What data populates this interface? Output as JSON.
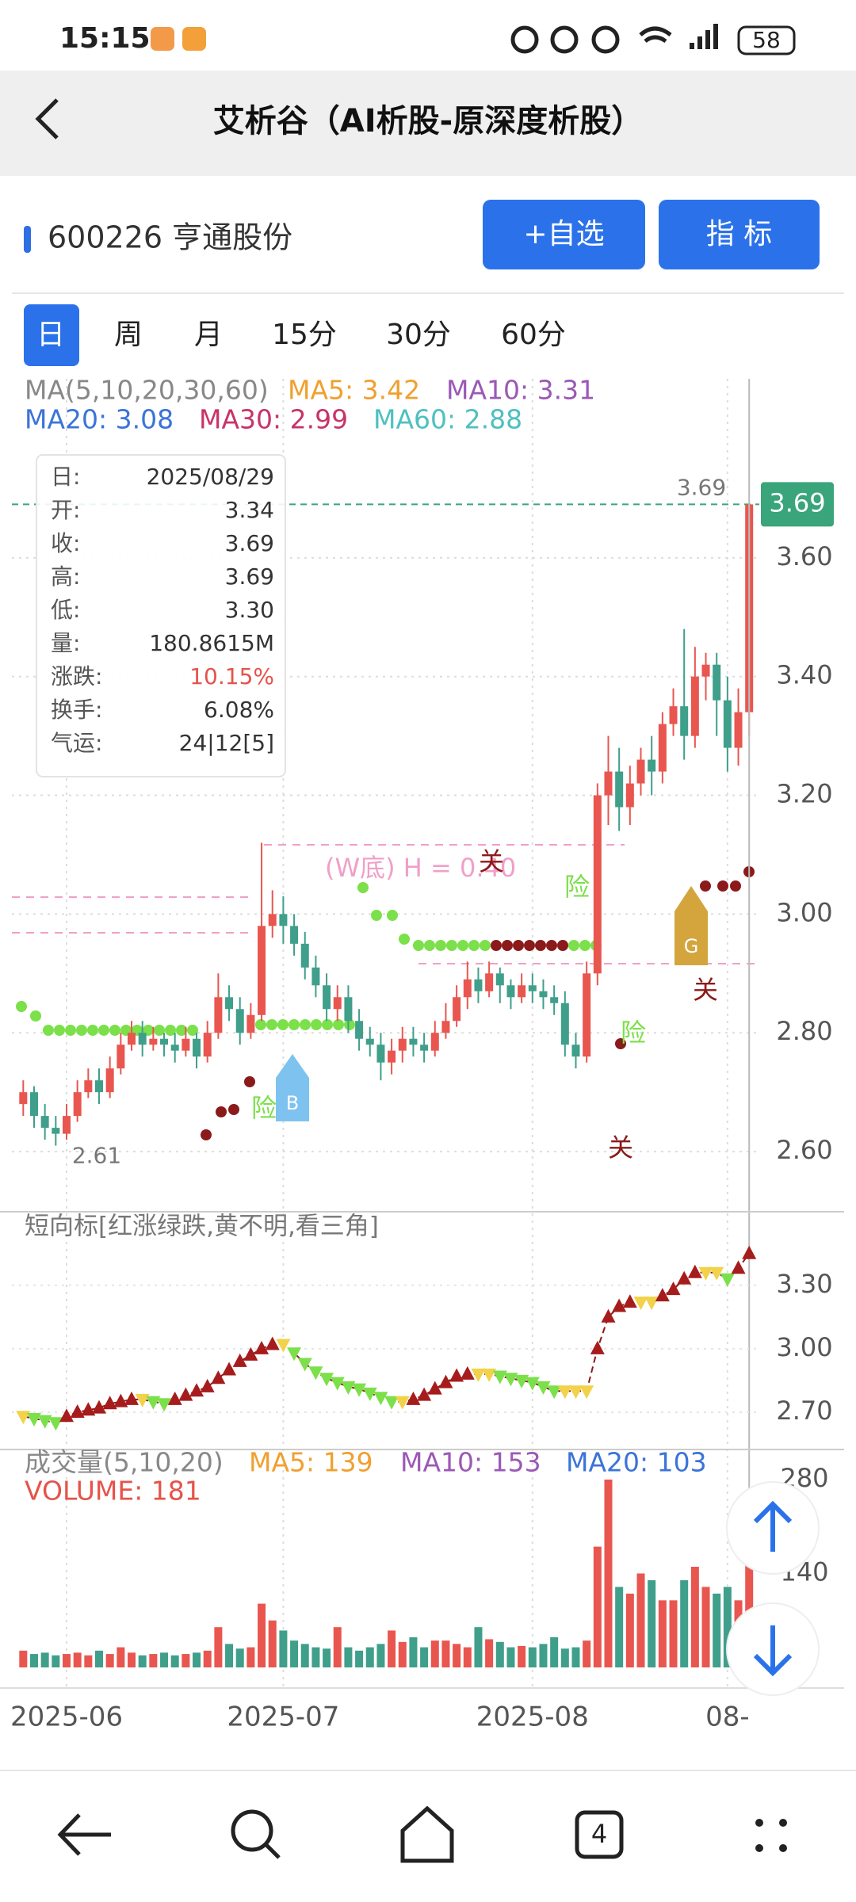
{
  "status_bar": {
    "time": "15:15",
    "battery": "58"
  },
  "header": {
    "title": "艾析谷（AI析股-原深度析股）"
  },
  "stock": {
    "name": "600226 亨通股份",
    "buttons": [
      "+自选",
      "指 标"
    ]
  },
  "tabs": [
    "日",
    "周",
    "月",
    "15分",
    "30分",
    "60分"
  ],
  "ma_legend": [
    "MA(5,10,20,30,60)",
    "MA5: 3.42",
    "MA10: 3.31",
    "MA20: 3.08",
    "MA30: 2.99",
    "MA60: 2.88"
  ],
  "info_box": {
    "rows": [
      [
        "日:",
        "2025/08/29"
      ],
      [
        "开:",
        "3.34"
      ],
      [
        "收:",
        "3.69"
      ],
      [
        "高:",
        "3.69"
      ],
      [
        "低:",
        "3.30"
      ],
      [
        "量:",
        "180.8615M"
      ],
      [
        "涨跌:",
        "10.15%"
      ],
      [
        "换手:",
        "6.08%"
      ],
      [
        "气运:",
        "24|12[5]"
      ]
    ]
  },
  "chart_data": [
    {
      "type": "candlestick",
      "categories": [
        null,
        null,
        null,
        null,
        "2025-06",
        null,
        null,
        null,
        null,
        null,
        null,
        null,
        null,
        null,
        null,
        null,
        null,
        null,
        null,
        null,
        null,
        null,
        null,
        null,
        "2025-07",
        null,
        null,
        null,
        null,
        null,
        null,
        null,
        null,
        null,
        null,
        null,
        null,
        null,
        null,
        null,
        null,
        null,
        null,
        null,
        null,
        null,
        null,
        "2025-08",
        null,
        null,
        null,
        null,
        null,
        null,
        null,
        null,
        null,
        null,
        null,
        null,
        null,
        null,
        null,
        null,
        null,
        "08-",
        null,
        null
      ],
      "open": [
        2.68,
        2.7,
        2.66,
        2.64,
        2.63,
        2.66,
        2.7,
        2.72,
        2.7,
        2.74,
        2.78,
        2.8,
        2.78,
        2.79,
        2.78,
        2.77,
        2.79,
        2.76,
        2.8,
        2.86,
        2.84,
        2.8,
        2.83,
        2.98,
        3.0,
        2.98,
        2.95,
        2.91,
        2.88,
        2.84,
        2.86,
        2.82,
        2.79,
        2.78,
        2.75,
        2.77,
        2.79,
        2.78,
        2.77,
        2.8,
        2.82,
        2.86,
        2.89,
        2.87,
        2.9,
        2.88,
        2.86,
        2.88,
        2.87,
        2.86,
        2.85,
        2.78,
        2.76,
        2.9,
        3.2,
        3.24,
        3.18,
        3.22,
        3.26,
        3.24,
        3.32,
        3.35,
        3.3,
        3.4,
        3.42,
        3.36,
        3.28,
        3.34
      ],
      "high": [
        2.72,
        2.71,
        2.68,
        2.66,
        2.68,
        2.72,
        2.74,
        2.74,
        2.76,
        2.8,
        2.82,
        2.82,
        2.81,
        2.8,
        2.8,
        2.81,
        2.8,
        2.82,
        2.9,
        2.88,
        2.86,
        2.85,
        3.12,
        3.04,
        3.03,
        3.0,
        2.97,
        2.93,
        2.9,
        2.88,
        2.88,
        2.84,
        2.81,
        2.8,
        2.79,
        2.81,
        2.81,
        2.8,
        2.82,
        2.85,
        2.88,
        2.92,
        2.91,
        2.92,
        2.91,
        2.89,
        2.9,
        2.9,
        2.89,
        2.88,
        2.87,
        2.8,
        2.92,
        3.22,
        3.3,
        3.28,
        3.25,
        3.28,
        3.3,
        3.34,
        3.38,
        3.48,
        3.45,
        3.44,
        3.44,
        3.4,
        3.38,
        3.69
      ],
      "low": [
        2.66,
        2.64,
        2.62,
        2.61,
        2.62,
        2.65,
        2.69,
        2.68,
        2.69,
        2.73,
        2.77,
        2.76,
        2.77,
        2.76,
        2.75,
        2.76,
        2.74,
        2.75,
        2.79,
        2.82,
        2.78,
        2.79,
        2.82,
        2.96,
        2.95,
        2.93,
        2.89,
        2.86,
        2.82,
        2.82,
        2.8,
        2.77,
        2.76,
        2.72,
        2.73,
        2.75,
        2.76,
        2.75,
        2.76,
        2.79,
        2.81,
        2.84,
        2.85,
        2.86,
        2.85,
        2.84,
        2.85,
        2.85,
        2.84,
        2.83,
        2.76,
        2.74,
        2.75,
        2.88,
        3.15,
        3.14,
        3.15,
        3.2,
        3.2,
        3.22,
        3.3,
        3.26,
        3.28,
        3.36,
        3.3,
        3.24,
        3.25,
        3.3
      ],
      "close": [
        2.7,
        2.66,
        2.64,
        2.63,
        2.66,
        2.7,
        2.72,
        2.7,
        2.74,
        2.78,
        2.8,
        2.78,
        2.79,
        2.78,
        2.77,
        2.79,
        2.76,
        2.8,
        2.86,
        2.84,
        2.8,
        2.83,
        2.98,
        3.0,
        2.98,
        2.95,
        2.91,
        2.88,
        2.84,
        2.86,
        2.82,
        2.79,
        2.78,
        2.75,
        2.77,
        2.79,
        2.78,
        2.77,
        2.8,
        2.82,
        2.86,
        2.89,
        2.87,
        2.9,
        2.88,
        2.86,
        2.88,
        2.87,
        2.86,
        2.85,
        2.78,
        2.76,
        2.9,
        3.2,
        3.24,
        3.18,
        3.22,
        3.26,
        3.24,
        3.32,
        3.35,
        3.3,
        3.4,
        3.42,
        3.36,
        3.28,
        3.34,
        3.69
      ],
      "colors": {
        "up": "#e8564f",
        "down": "#3f9f8a"
      },
      "ylim": [
        2.5,
        3.8
      ],
      "yticks": [
        {
          "value": 3.6,
          "label": "3.60"
        },
        {
          "value": 3.4,
          "label": "3.40"
        },
        {
          "value": 3.2,
          "label": "3.20"
        },
        {
          "value": 3,
          "label": "3.00"
        },
        {
          "value": 2.8,
          "label": "2.80"
        },
        {
          "value": 2.6,
          "label": "2.60"
        }
      ],
      "grid": true,
      "last_label": {
        "value": 3.69,
        "label": "3.69"
      },
      "max_label": {
        "value": 3.69,
        "label": "3.69"
      },
      "min_label": {
        "value": 2.61,
        "label": "2.61"
      },
      "annotations": [
        "(W底) H = 0.40",
        "关",
        "关",
        "关",
        "险",
        "险",
        "险",
        "B",
        "G"
      ]
    },
    {
      "type": "line",
      "title": "短向标[红涨绿跌,黄不明,看三角]",
      "values": [
        2.68,
        2.67,
        2.66,
        2.65,
        2.68,
        2.7,
        2.71,
        2.72,
        2.74,
        2.75,
        2.76,
        2.76,
        2.75,
        2.74,
        2.76,
        2.78,
        2.8,
        2.82,
        2.86,
        2.9,
        2.94,
        2.97,
        3.0,
        3.02,
        3.02,
        2.98,
        2.93,
        2.89,
        2.86,
        2.84,
        2.82,
        2.81,
        2.79,
        2.77,
        2.75,
        2.75,
        2.76,
        2.78,
        2.81,
        2.84,
        2.87,
        2.88,
        2.88,
        2.88,
        2.87,
        2.86,
        2.85,
        2.84,
        2.82,
        2.8,
        2.8,
        2.8,
        2.8,
        3.0,
        3.15,
        3.2,
        3.22,
        3.22,
        3.22,
        3.25,
        3.28,
        3.33,
        3.36,
        3.36,
        3.36,
        3.33,
        3.38,
        3.45
      ],
      "colors": {
        "up": "#a61c1c",
        "down": "#7be04a",
        "flat": "#f2d24a"
      },
      "ylim": [
        2.55,
        3.55
      ],
      "yticks": [
        {
          "value": 3.3,
          "label": "3.30"
        },
        {
          "value": 3,
          "label": "3.00"
        },
        {
          "value": 2.7,
          "label": "2.70"
        }
      ]
    },
    {
      "type": "bar",
      "legend": [
        "成交量(5,10,20)",
        "MA5: 139",
        "MA10: 153",
        "MA20: 103",
        "VOLUME: 181"
      ],
      "values": [
        25,
        20,
        22,
        18,
        20,
        22,
        18,
        25,
        20,
        30,
        22,
        18,
        20,
        22,
        18,
        20,
        22,
        25,
        60,
        35,
        28,
        30,
        95,
        70,
        55,
        40,
        35,
        30,
        28,
        60,
        30,
        25,
        30,
        35,
        55,
        38,
        45,
        30,
        40,
        40,
        35,
        30,
        60,
        42,
        38,
        30,
        32,
        30,
        35,
        45,
        28,
        30,
        40,
        180,
        280,
        120,
        110,
        140,
        130,
        100,
        100,
        130,
        150,
        120,
        110,
        120,
        100,
        181
      ],
      "ylim": [
        0,
        300
      ],
      "yticks": [
        280,
        140
      ]
    }
  ],
  "nav": {
    "tabs_count": "4"
  }
}
